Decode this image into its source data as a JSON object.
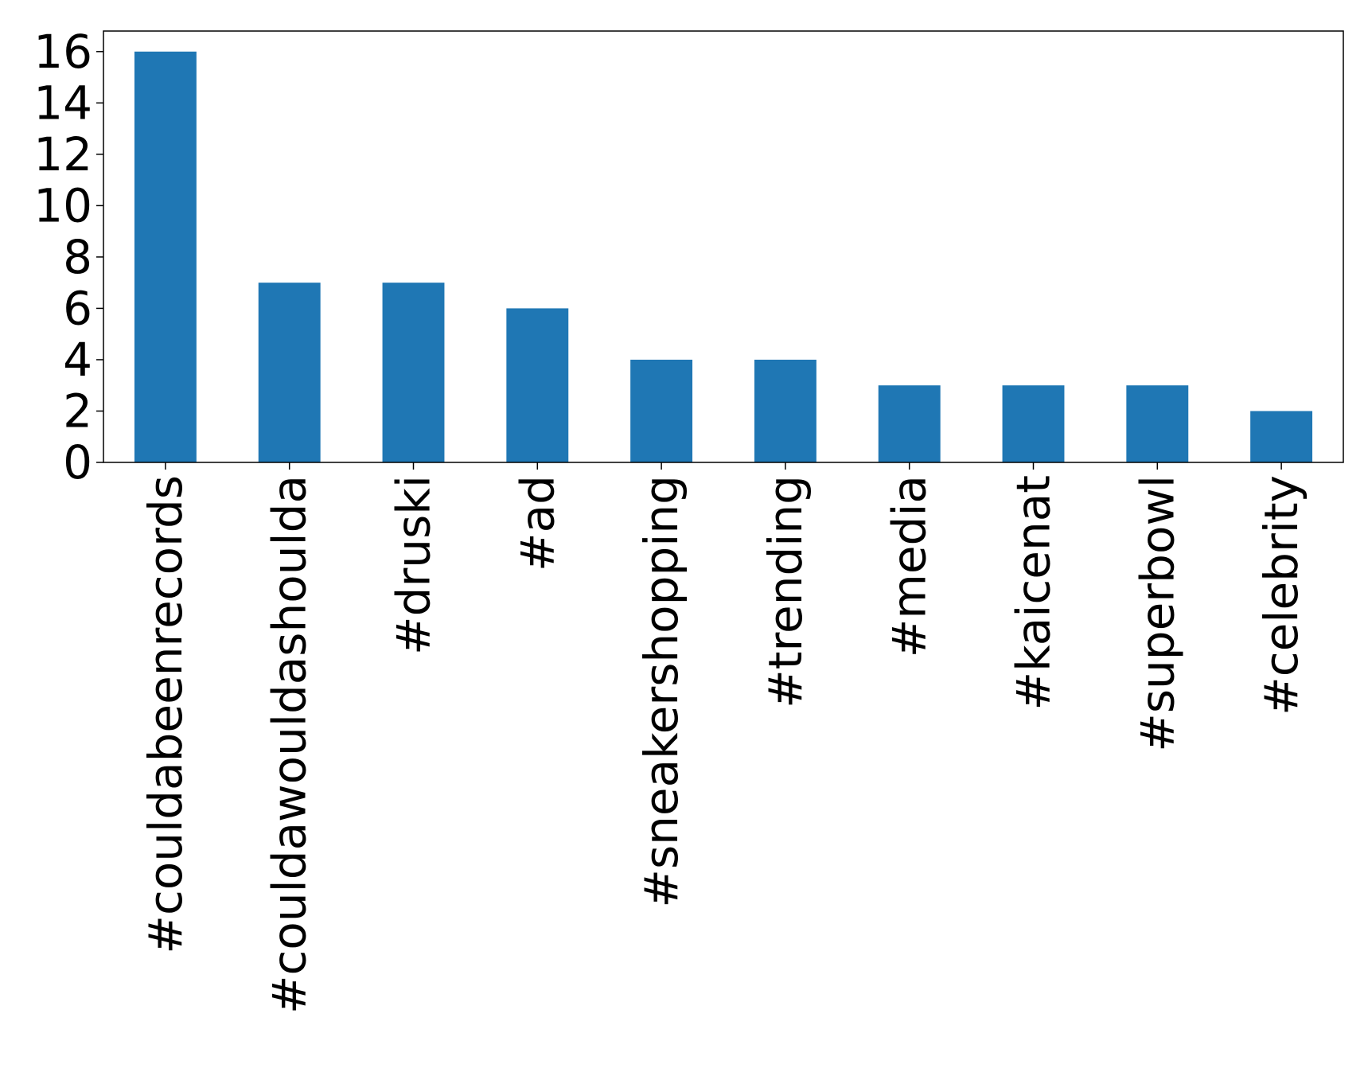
{
  "chart_data": {
    "type": "bar",
    "categories": [
      "#couldabeenrecords",
      "#couldawouldashoulda",
      "#druski",
      "#ad",
      "#sneakershopping",
      "#trending",
      "#media",
      "#kaicenat",
      "#superbowl",
      "#celebrity"
    ],
    "values": [
      16,
      7,
      7,
      6,
      4,
      4,
      3,
      3,
      3,
      2
    ],
    "title": "",
    "xlabel": "",
    "ylabel": "",
    "ylim": [
      0,
      16.8
    ],
    "yticks": [
      0,
      2,
      4,
      6,
      8,
      10,
      12,
      14,
      16
    ],
    "grid": false,
    "bar_color": "#1f77b4",
    "x_tick_rotation": "vertical"
  }
}
